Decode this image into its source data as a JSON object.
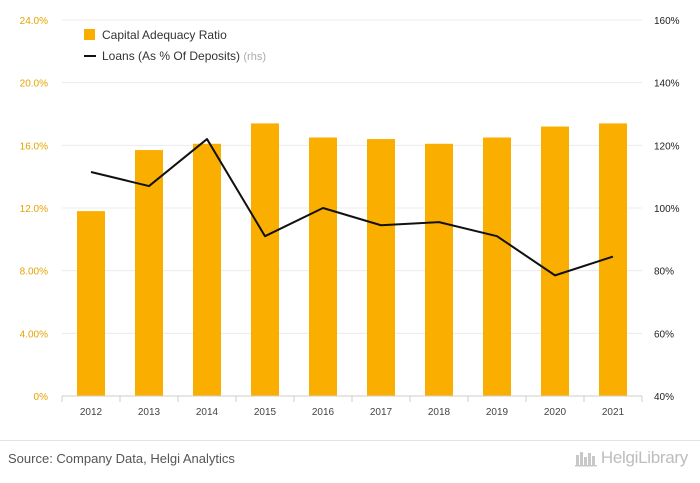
{
  "colors": {
    "bar": "#FAAF00",
    "line": "#111111",
    "left_axis": "#E5A400",
    "right_axis": "#222222",
    "grid": "#ececec"
  },
  "chart_data": {
    "type": "bar",
    "categories": [
      "2012",
      "2013",
      "2014",
      "2015",
      "2016",
      "2017",
      "2018",
      "2019",
      "2020",
      "2021"
    ],
    "series": [
      {
        "name": "Capital Adequacy Ratio",
        "type": "bar",
        "axis": "left",
        "values": [
          11.8,
          15.7,
          16.1,
          17.4,
          16.5,
          16.4,
          16.1,
          16.5,
          17.2,
          17.4
        ]
      },
      {
        "name": "Loans (As % Of Deposits)",
        "name_suffix": "(rhs)",
        "type": "line",
        "axis": "right",
        "values": [
          111.5,
          107.0,
          122.0,
          91.0,
          100.0,
          94.5,
          95.5,
          91.0,
          78.5,
          84.5
        ]
      }
    ],
    "left_axis": {
      "min": 0,
      "max": 24,
      "ticks": [
        "0%",
        "4.00%",
        "8.00%",
        "12.0%",
        "16.0%",
        "20.0%",
        "24.0%"
      ]
    },
    "right_axis": {
      "min": 40,
      "max": 160,
      "ticks": [
        "40%",
        "60%",
        "80%",
        "100%",
        "120%",
        "140%",
        "160%"
      ]
    },
    "grid": true,
    "legend_position": "top-left"
  },
  "footer": {
    "source": "Source: Company Data, Helgi Analytics",
    "brand": "HelgiLibrary"
  }
}
